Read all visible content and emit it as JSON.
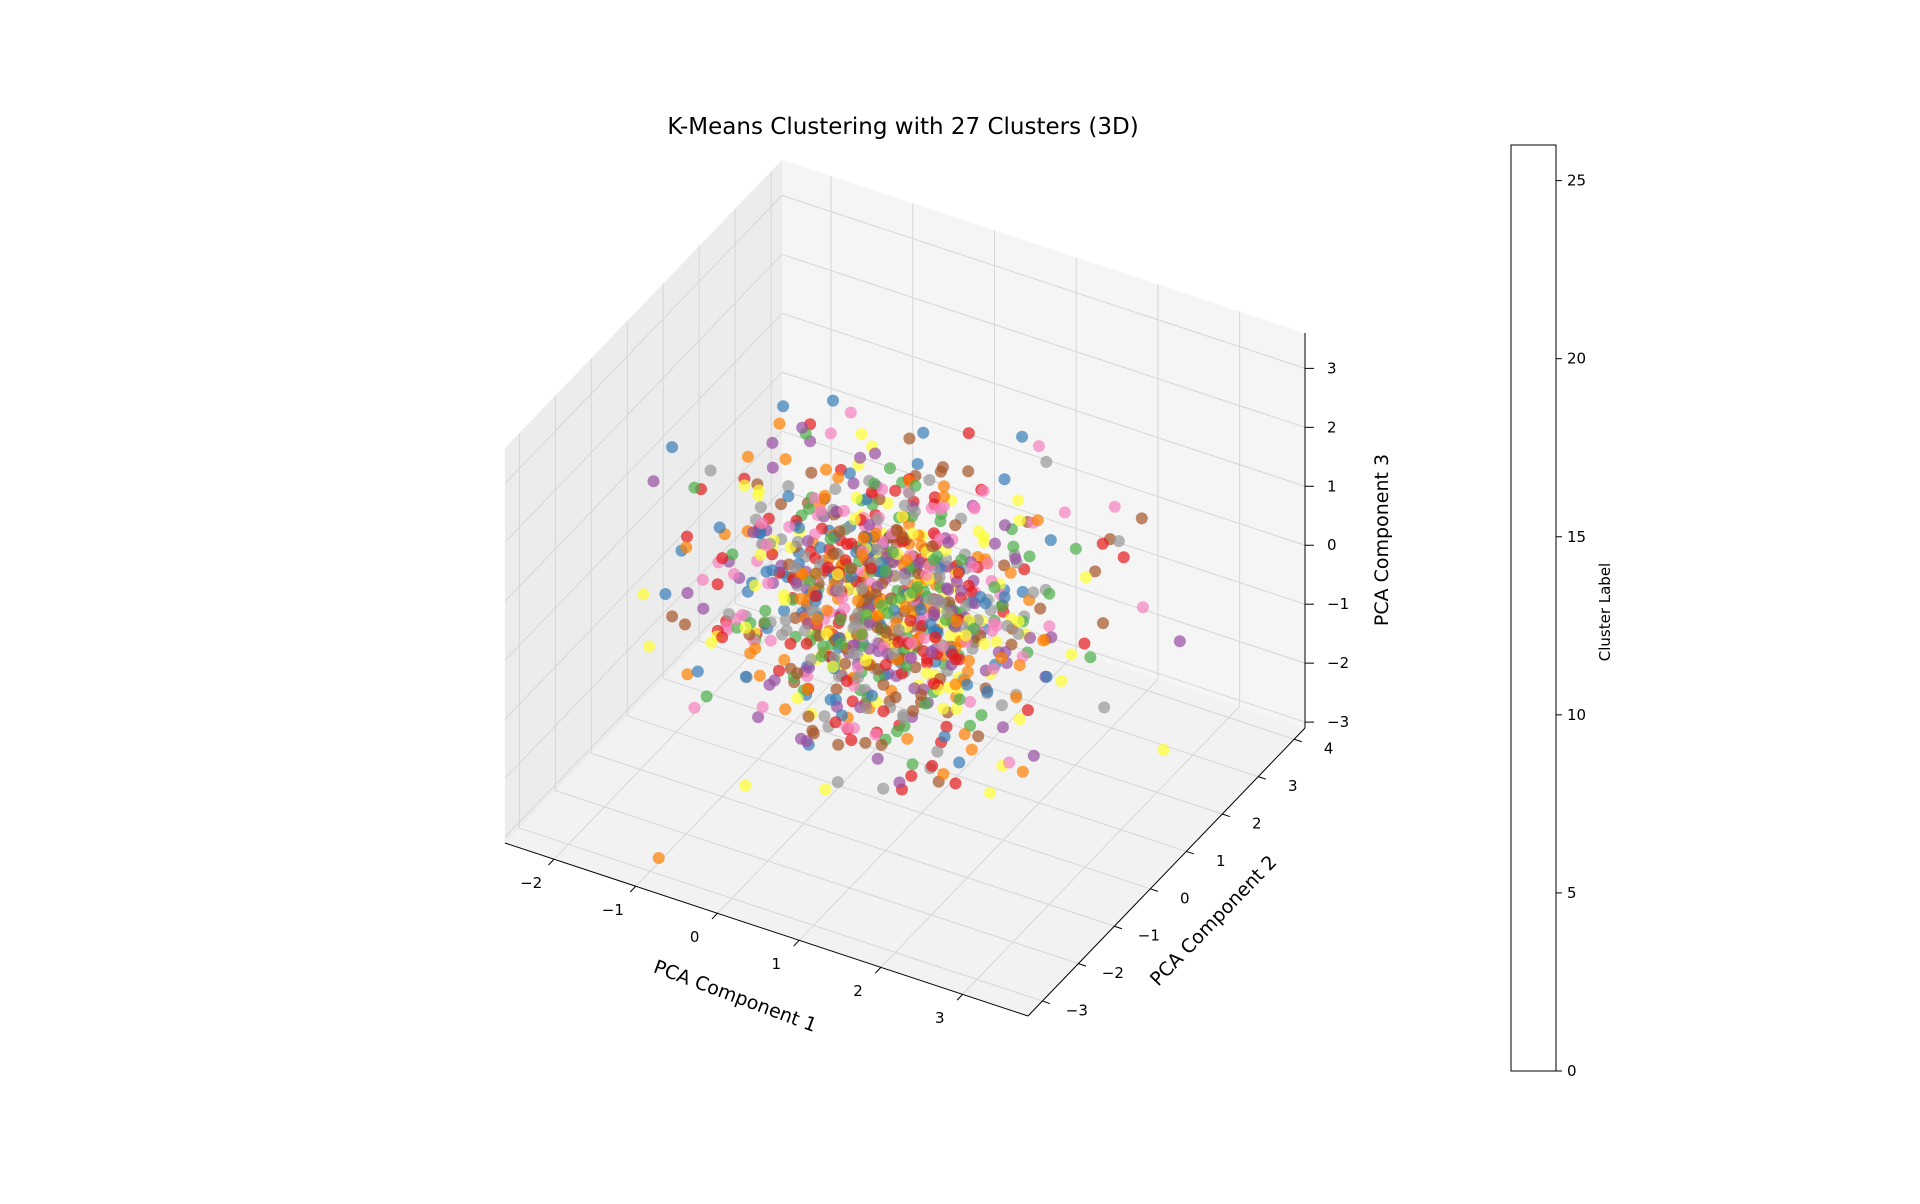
{
  "chart_data": {
    "type": "scatter",
    "projection": "3d",
    "title": "K-Means Clustering with 27 Clusters (3D)",
    "xlabel": "PCA Component 1",
    "ylabel": "PCA Component 2",
    "zlabel": "PCA Component 3",
    "xlim": [
      -2.6,
      3.8
    ],
    "ylim": [
      -3.4,
      4.3
    ],
    "zlim": [
      -3.1,
      3.6
    ],
    "xticks": [
      "−2",
      "−1",
      "0",
      "1",
      "2",
      "3"
    ],
    "yticks": [
      "−3",
      "−2",
      "−1",
      "0",
      "1",
      "2",
      "3",
      "4"
    ],
    "zticks": [
      "−3",
      "−2",
      "−1",
      "0",
      "1",
      "2",
      "3"
    ],
    "grid": true,
    "n_clusters": 27,
    "n_points": 1000,
    "colormap": "Set1",
    "colormap_colors": [
      "#e41a1c",
      "#377eb8",
      "#4daf4a",
      "#984ea3",
      "#ff7f00",
      "#ffff33",
      "#a65628",
      "#f781bf",
      "#999999"
    ],
    "point_alpha": 0.7,
    "colorbar": {
      "label": "Cluster Label",
      "range": [
        0,
        26
      ],
      "ticks": [
        "0",
        "5",
        "10",
        "15",
        "20",
        "25"
      ]
    }
  }
}
